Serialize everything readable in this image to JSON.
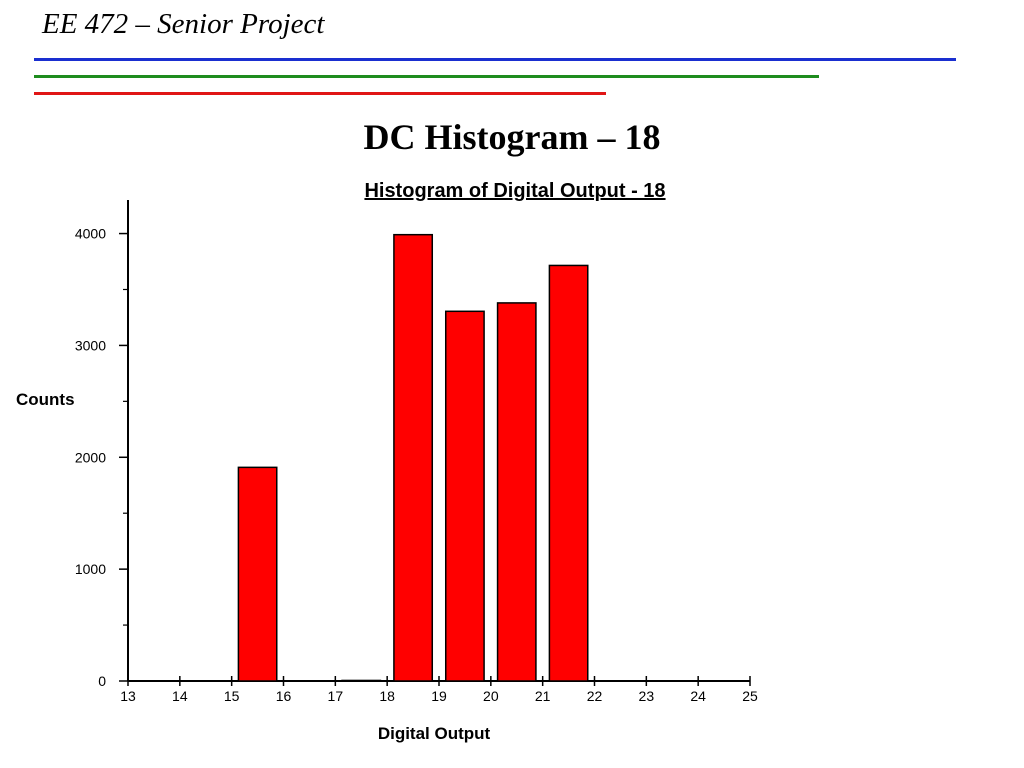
{
  "header": {
    "title": "EE 472 – Senior Project"
  },
  "rules": {
    "colors": [
      "#1a2fd0",
      "#1e8c1e",
      "#e01616"
    ]
  },
  "slide": {
    "title": "DC Histogram – 18"
  },
  "chart_data": {
    "type": "bar",
    "title": "Histogram of Digital Output - 18",
    "xlabel": "Digital Output",
    "ylabel": "Counts",
    "xlim": [
      13,
      25
    ],
    "ylim": [
      0,
      4300
    ],
    "x_ticks": [
      13,
      14,
      15,
      16,
      17,
      18,
      19,
      20,
      21,
      22,
      23,
      24,
      25
    ],
    "y_ticks": [
      0,
      1000,
      2000,
      3000,
      4000
    ],
    "y_minor_ticks": [
      500,
      1500,
      2500,
      3500
    ],
    "bars": [
      {
        "x": 15,
        "value": 1910
      },
      {
        "x": 17,
        "value": 5
      },
      {
        "x": 18,
        "value": 3990
      },
      {
        "x": 19,
        "value": 3305
      },
      {
        "x": 20,
        "value": 3380
      },
      {
        "x": 21,
        "value": 3715
      }
    ],
    "bar_color": "#ff0000",
    "grid": false
  }
}
